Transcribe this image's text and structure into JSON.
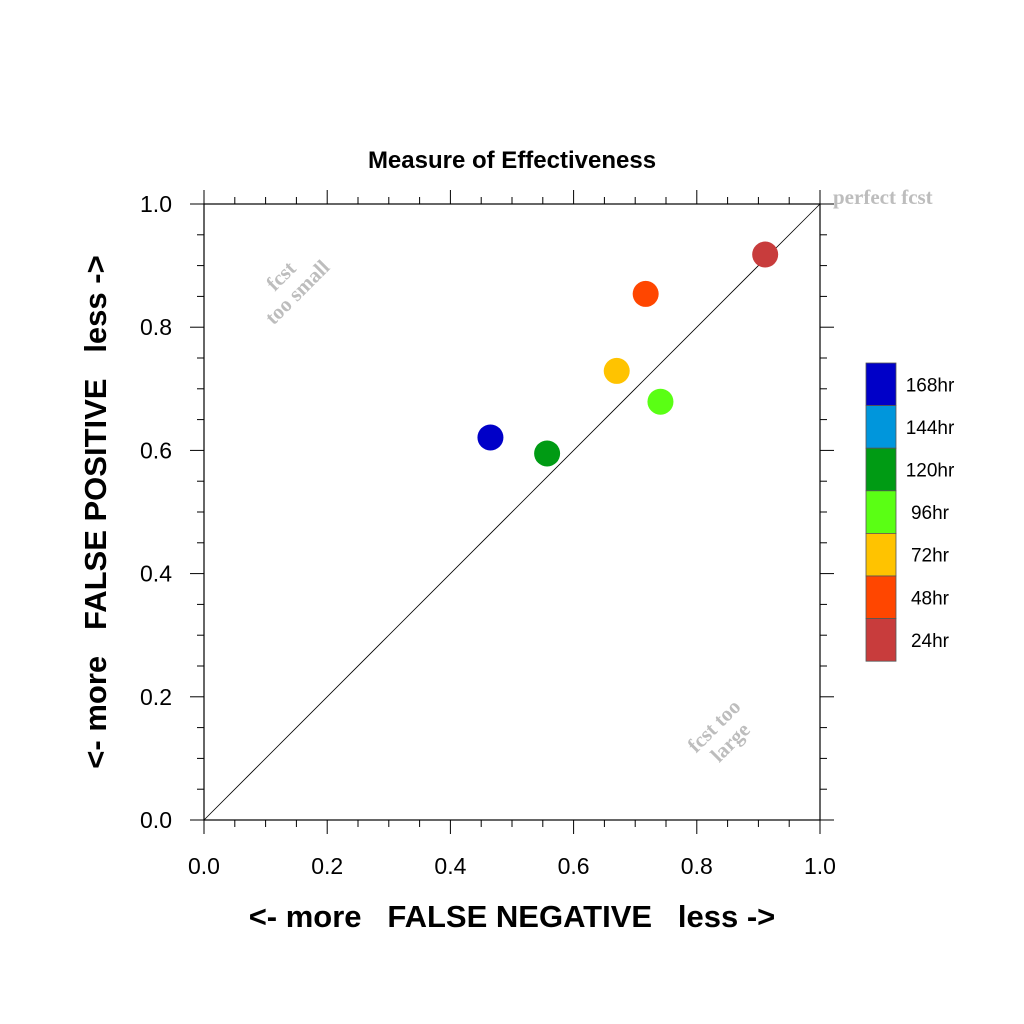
{
  "chart_data": {
    "type": "scatter",
    "title": "Measure of Effectiveness",
    "xlabel": "<- more   FALSE NEGATIVE   less ->",
    "ylabel": "<- more   FALSE POSITIVE   less ->",
    "xlim": [
      0.0,
      1.0
    ],
    "ylim": [
      0.0,
      1.0
    ],
    "x_ticks": [
      "0.0",
      "0.2",
      "0.4",
      "0.6",
      "0.8",
      "1.0"
    ],
    "y_ticks": [
      "0.0",
      "0.2",
      "0.4",
      "0.6",
      "0.8",
      "1.0"
    ],
    "grid": false,
    "diagonal_line": true,
    "annotations": {
      "perfect": "perfect fcst",
      "too_small_line1": "fcst",
      "too_small_line2": "too small",
      "too_large_line1": "fcst too",
      "too_large_line2": "large"
    },
    "legend_placement": "right",
    "legend": [
      {
        "label": "168hr",
        "color": "#0000c8"
      },
      {
        "label": "144hr",
        "color": "#0096dc"
      },
      {
        "label": "120hr",
        "color": "#009b14"
      },
      {
        "label": "96hr",
        "color": "#5aff14"
      },
      {
        "label": "72hr",
        "color": "#ffc300"
      },
      {
        "label": "48hr",
        "color": "#ff4600"
      },
      {
        "label": "24hr",
        "color": "#c83c3c"
      }
    ],
    "points": [
      {
        "label": "168hr",
        "x": 0.465,
        "y": 0.621,
        "color": "#0000c8"
      },
      {
        "label": "120hr",
        "x": 0.557,
        "y": 0.595,
        "color": "#009b14"
      },
      {
        "label": "72hr",
        "x": 0.67,
        "y": 0.729,
        "color": "#ffc300"
      },
      {
        "label": "96hr",
        "x": 0.741,
        "y": 0.679,
        "color": "#5aff14"
      },
      {
        "label": "48hr",
        "x": 0.717,
        "y": 0.854,
        "color": "#ff4600"
      },
      {
        "label": "24hr",
        "x": 0.911,
        "y": 0.918,
        "color": "#c83c3c"
      }
    ]
  }
}
